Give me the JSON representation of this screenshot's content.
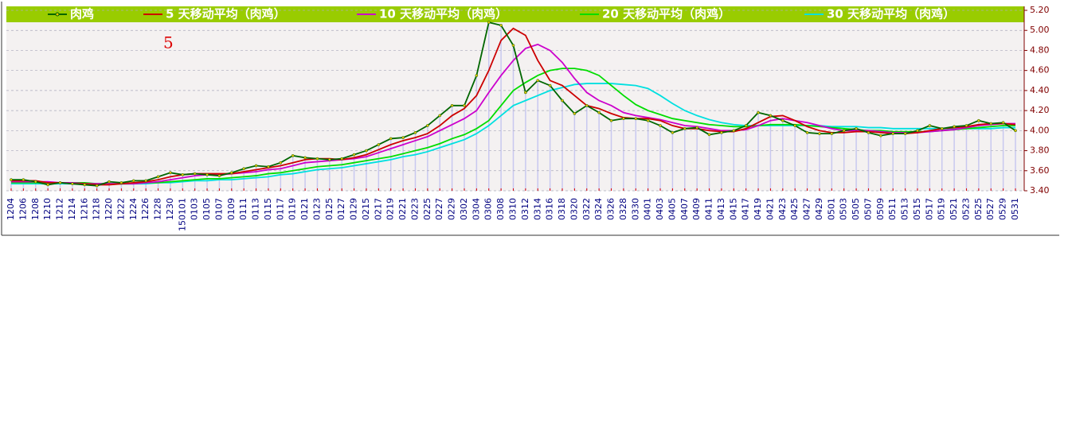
{
  "chart_data": {
    "type": "line",
    "annotation": "5",
    "categories": [
      "1204",
      "1206",
      "1208",
      "1210",
      "1212",
      "1214",
      "1216",
      "1218",
      "1220",
      "1222",
      "1224",
      "1226",
      "1228",
      "1230",
      "150101",
      "0103",
      "0105",
      "0107",
      "0109",
      "0111",
      "0113",
      "0115",
      "0117",
      "0119",
      "0121",
      "0123",
      "0125",
      "0127",
      "0129",
      "0215",
      "0217",
      "0219",
      "0221",
      "0223",
      "0225",
      "0227",
      "0229",
      "0302",
      "0304",
      "0306",
      "0308",
      "0310",
      "0312",
      "0314",
      "0316",
      "0318",
      "0320",
      "0322",
      "0324",
      "0326",
      "0328",
      "0330",
      "0401",
      "0403",
      "0405",
      "0407",
      "0409",
      "0411",
      "0413",
      "0415",
      "0417",
      "0419",
      "0421",
      "0423",
      "0425",
      "0427",
      "0429",
      "0501",
      "0503",
      "0505",
      "0507",
      "0509",
      "0511",
      "0513",
      "0515",
      "0517",
      "0519",
      "0521",
      "0523",
      "0525",
      "0527",
      "0529",
      "0531"
    ],
    "series": [
      {
        "name": "肉鸡",
        "color": "#006600",
        "markers": true,
        "values": [
          3.51,
          3.51,
          3.49,
          3.46,
          3.48,
          3.47,
          3.46,
          3.45,
          3.49,
          3.48,
          3.5,
          3.5,
          3.54,
          3.58,
          3.56,
          3.57,
          3.56,
          3.55,
          3.58,
          3.62,
          3.65,
          3.64,
          3.68,
          3.75,
          3.73,
          3.72,
          3.71,
          3.72,
          3.76,
          3.8,
          3.86,
          3.92,
          3.93,
          3.98,
          4.05,
          4.15,
          4.25,
          4.25,
          4.55,
          5.08,
          5.05,
          4.85,
          4.38,
          4.5,
          4.45,
          4.3,
          4.17,
          4.25,
          4.18,
          4.1,
          4.12,
          4.12,
          4.1,
          4.05,
          3.98,
          4.02,
          4.03,
          3.96,
          3.98,
          4.0,
          4.05,
          4.18,
          4.15,
          4.1,
          4.05,
          3.98,
          3.97,
          3.97,
          4.0,
          4.02,
          3.98,
          3.95,
          3.97,
          3.97,
          4.0,
          4.05,
          4.02,
          4.04,
          4.05,
          4.1,
          4.07,
          4.08,
          4.0
        ]
      },
      {
        "name": "5 天移动平均（肉鸡）",
        "color": "#cc0000",
        "values": [
          3.5,
          3.5,
          3.5,
          3.48,
          3.48,
          3.47,
          3.47,
          3.46,
          3.46,
          3.47,
          3.48,
          3.49,
          3.51,
          3.54,
          3.56,
          3.57,
          3.57,
          3.57,
          3.57,
          3.59,
          3.61,
          3.63,
          3.65,
          3.68,
          3.71,
          3.72,
          3.72,
          3.71,
          3.73,
          3.76,
          3.81,
          3.86,
          3.9,
          3.93,
          3.97,
          4.05,
          4.15,
          4.22,
          4.35,
          4.6,
          4.9,
          5.02,
          4.95,
          4.7,
          4.5,
          4.45,
          4.35,
          4.25,
          4.22,
          4.17,
          4.13,
          4.12,
          4.12,
          4.1,
          4.05,
          4.02,
          4.02,
          4.0,
          3.99,
          3.99,
          4.02,
          4.08,
          4.14,
          4.15,
          4.1,
          4.04,
          4.0,
          3.98,
          3.98,
          3.99,
          3.99,
          3.98,
          3.97,
          3.97,
          3.98,
          4.0,
          4.02,
          4.03,
          4.04,
          4.06,
          4.07,
          4.07,
          4.06
        ]
      },
      {
        "name": "10 天移动平均（肉鸡）",
        "color": "#cc00cc",
        "values": [
          3.49,
          3.49,
          3.49,
          3.49,
          3.48,
          3.48,
          3.47,
          3.47,
          3.47,
          3.47,
          3.47,
          3.48,
          3.49,
          3.51,
          3.53,
          3.55,
          3.56,
          3.56,
          3.57,
          3.58,
          3.59,
          3.61,
          3.62,
          3.65,
          3.68,
          3.69,
          3.7,
          3.71,
          3.72,
          3.74,
          3.78,
          3.82,
          3.86,
          3.9,
          3.94,
          4.0,
          4.06,
          4.12,
          4.2,
          4.38,
          4.55,
          4.7,
          4.82,
          4.86,
          4.8,
          4.68,
          4.52,
          4.38,
          4.3,
          4.25,
          4.18,
          4.15,
          4.13,
          4.11,
          4.08,
          4.05,
          4.04,
          4.02,
          4.0,
          4.0,
          4.01,
          4.05,
          4.1,
          4.12,
          4.1,
          4.08,
          4.05,
          4.02,
          4.0,
          4.0,
          4.0,
          3.99,
          3.98,
          3.98,
          3.98,
          3.99,
          4.0,
          4.01,
          4.03,
          4.05,
          4.06,
          4.07,
          4.07
        ]
      },
      {
        "name": "20 天移动平均（肉鸡）",
        "color": "#00dd00",
        "values": [
          3.48,
          3.48,
          3.48,
          3.48,
          3.48,
          3.48,
          3.48,
          3.47,
          3.47,
          3.47,
          3.47,
          3.48,
          3.48,
          3.49,
          3.5,
          3.51,
          3.52,
          3.52,
          3.53,
          3.54,
          3.55,
          3.57,
          3.58,
          3.6,
          3.62,
          3.64,
          3.65,
          3.66,
          3.68,
          3.7,
          3.72,
          3.74,
          3.77,
          3.8,
          3.83,
          3.87,
          3.92,
          3.96,
          4.02,
          4.1,
          4.25,
          4.4,
          4.48,
          4.55,
          4.6,
          4.62,
          4.62,
          4.6,
          4.55,
          4.45,
          4.35,
          4.26,
          4.2,
          4.16,
          4.12,
          4.1,
          4.08,
          4.06,
          4.05,
          4.04,
          4.04,
          4.05,
          4.06,
          4.06,
          4.06,
          4.05,
          4.04,
          4.03,
          4.02,
          4.01,
          4.0,
          4.0,
          3.99,
          3.99,
          3.99,
          3.99,
          4.0,
          4.01,
          4.02,
          4.03,
          4.04,
          4.05,
          4.05
        ]
      },
      {
        "name": "30 天移动平均（肉鸡）",
        "color": "#00e0e0",
        "values": [
          3.47,
          3.47,
          3.47,
          3.47,
          3.47,
          3.47,
          3.47,
          3.47,
          3.47,
          3.47,
          3.47,
          3.47,
          3.48,
          3.48,
          3.49,
          3.5,
          3.5,
          3.51,
          3.51,
          3.52,
          3.53,
          3.54,
          3.56,
          3.57,
          3.59,
          3.61,
          3.62,
          3.63,
          3.65,
          3.67,
          3.69,
          3.71,
          3.74,
          3.76,
          3.79,
          3.83,
          3.87,
          3.91,
          3.97,
          4.05,
          4.15,
          4.25,
          4.3,
          4.35,
          4.4,
          4.43,
          4.46,
          4.47,
          4.47,
          4.47,
          4.46,
          4.45,
          4.42,
          4.35,
          4.27,
          4.2,
          4.15,
          4.11,
          4.08,
          4.06,
          4.05,
          4.05,
          4.05,
          4.05,
          4.05,
          4.05,
          4.05,
          4.04,
          4.04,
          4.04,
          4.03,
          4.03,
          4.02,
          4.02,
          4.02,
          4.02,
          4.02,
          4.02,
          4.02,
          4.02,
          4.02,
          4.03,
          4.03
        ]
      }
    ],
    "ylim": [
      3.4,
      5.2
    ],
    "yticks": [
      {
        "value": 3.4,
        "label": "3.40"
      },
      {
        "value": 3.6,
        "label": "3.60"
      },
      {
        "value": 3.8,
        "label": "3.80"
      },
      {
        "value": 4.0,
        "label": "4.00"
      },
      {
        "value": 4.2,
        "label": "4.20"
      },
      {
        "value": 4.4,
        "label": "4.40"
      },
      {
        "value": 4.6,
        "label": "4.60"
      },
      {
        "value": 4.8,
        "label": "4.80"
      },
      {
        "value": 5.0,
        "label": "5.00"
      },
      {
        "value": 5.2,
        "label": "5.20"
      }
    ],
    "grid": true
  }
}
